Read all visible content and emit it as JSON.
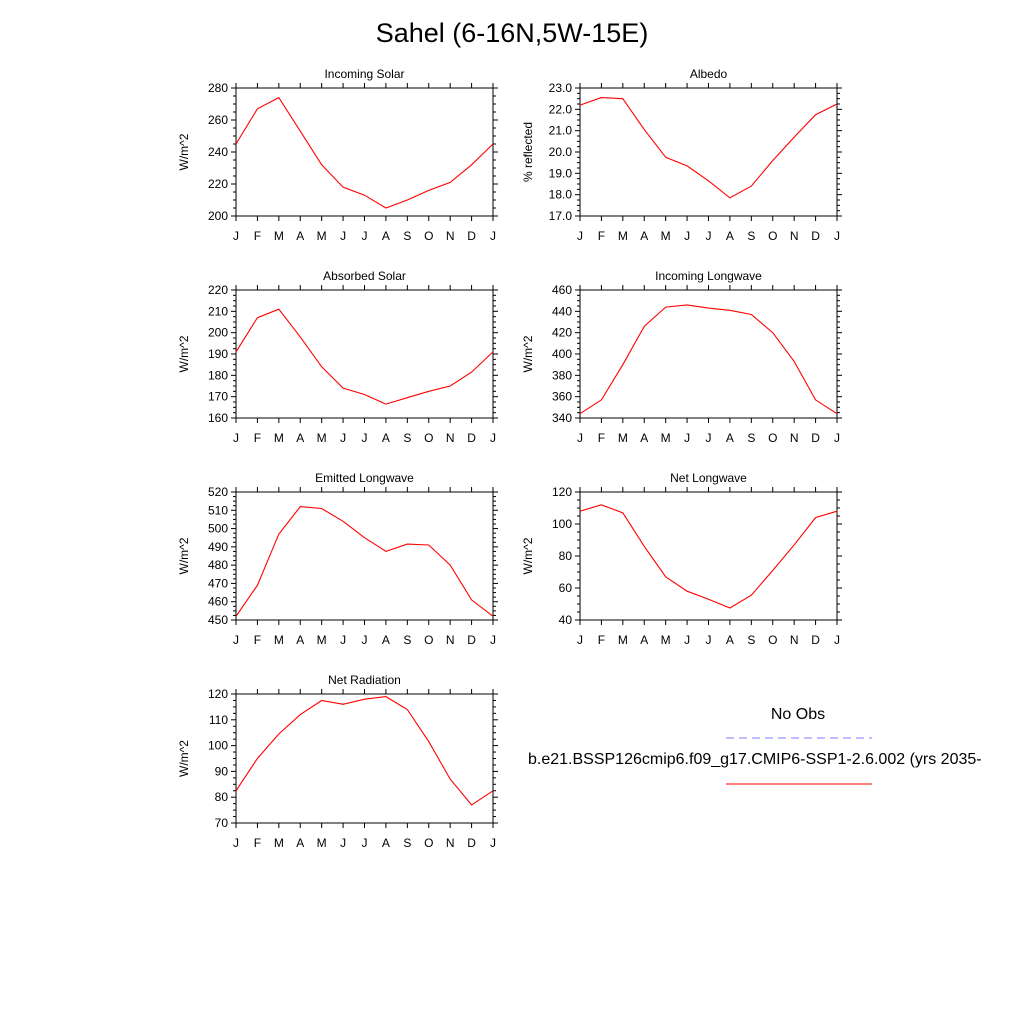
{
  "page": {
    "title": "Sahel (6-16N,5W-15E)"
  },
  "legend": {
    "obs_label": "No Obs",
    "obs_line_color": "#7b7bff",
    "obs_line_style": "dashed",
    "model_label": "b.e21.BSSP126cmip6.f09_g17.CMIP6-SSP1-2.6.002 (yrs 2035-",
    "model_line_color": "#ff0000"
  },
  "chart_data": [
    {
      "type": "line",
      "title": "Incoming Solar",
      "ylabel": "W/m^2",
      "ylim": [
        200,
        280
      ],
      "yticks": [
        "200",
        "220",
        "240",
        "260",
        "280"
      ],
      "categories": [
        "J",
        "F",
        "M",
        "A",
        "M",
        "J",
        "J",
        "A",
        "S",
        "O",
        "N",
        "D",
        "J"
      ],
      "series": [
        {
          "color": "#ff0000",
          "values": [
            245,
            267,
            274,
            253,
            232,
            218,
            213,
            205,
            210,
            216,
            221,
            232,
            245
          ]
        }
      ]
    },
    {
      "type": "line",
      "title": "Albedo",
      "ylabel": "% reflected",
      "ylim": [
        17.0,
        23.0
      ],
      "yticks": [
        "17.0",
        "18.0",
        "19.0",
        "20.0",
        "21.0",
        "22.0",
        "23.0"
      ],
      "categories": [
        "J",
        "F",
        "M",
        "A",
        "M",
        "J",
        "J",
        "A",
        "S",
        "O",
        "N",
        "D",
        "J"
      ],
      "series": [
        {
          "color": "#ff0000",
          "values": [
            22.2,
            22.55,
            22.5,
            21.05,
            19.75,
            19.35,
            18.65,
            17.85,
            18.4,
            19.6,
            20.7,
            21.75,
            22.25
          ]
        }
      ]
    },
    {
      "type": "line",
      "title": "Absorbed Solar",
      "ylabel": "W/m^2",
      "ylim": [
        160,
        220
      ],
      "yticks": [
        "160",
        "170",
        "180",
        "190",
        "200",
        "210",
        "220"
      ],
      "categories": [
        "J",
        "F",
        "M",
        "A",
        "M",
        "J",
        "J",
        "A",
        "S",
        "O",
        "N",
        "D",
        "J"
      ],
      "series": [
        {
          "color": "#ff0000",
          "values": [
            191,
            207,
            211,
            198,
            184,
            174,
            171,
            166.5,
            169.5,
            172.5,
            175,
            181.5,
            191
          ]
        }
      ]
    },
    {
      "type": "line",
      "title": "Incoming Longwave",
      "ylabel": "W/m^2",
      "ylim": [
        340,
        460
      ],
      "yticks": [
        "340",
        "360",
        "380",
        "400",
        "420",
        "440",
        "460"
      ],
      "categories": [
        "J",
        "F",
        "M",
        "A",
        "M",
        "J",
        "J",
        "A",
        "S",
        "O",
        "N",
        "D",
        "J"
      ],
      "series": [
        {
          "color": "#ff0000",
          "values": [
            344,
            357,
            390,
            426,
            444,
            446,
            443,
            441,
            437,
            420,
            393,
            357,
            344
          ]
        }
      ]
    },
    {
      "type": "line",
      "title": "Emitted Longwave",
      "ylabel": "W/m^2",
      "ylim": [
        450,
        520
      ],
      "yticks": [
        "450",
        "460",
        "470",
        "480",
        "490",
        "500",
        "510",
        "520"
      ],
      "categories": [
        "J",
        "F",
        "M",
        "A",
        "M",
        "J",
        "J",
        "A",
        "S",
        "O",
        "N",
        "D",
        "J"
      ],
      "series": [
        {
          "color": "#ff0000",
          "values": [
            452,
            469,
            497,
            512,
            511,
            504,
            495,
            487.5,
            491.5,
            491,
            480,
            461,
            452
          ]
        }
      ]
    },
    {
      "type": "line",
      "title": "Net Longwave",
      "ylabel": "W/m^2",
      "ylim": [
        40,
        120
      ],
      "yticks": [
        "40",
        "60",
        "80",
        "100",
        "120"
      ],
      "categories": [
        "J",
        "F",
        "M",
        "A",
        "M",
        "J",
        "J",
        "A",
        "S",
        "O",
        "N",
        "D",
        "J"
      ],
      "series": [
        {
          "color": "#ff0000",
          "values": [
            108,
            112,
            107,
            86,
            67,
            58,
            53,
            47.5,
            55.5,
            71,
            87,
            104,
            108
          ]
        }
      ]
    },
    {
      "type": "line",
      "title": "Net Radiation",
      "ylabel": "W/m^2",
      "ylim": [
        70,
        120
      ],
      "yticks": [
        "70",
        "80",
        "90",
        "100",
        "110",
        "120"
      ],
      "categories": [
        "J",
        "F",
        "M",
        "A",
        "M",
        "J",
        "J",
        "A",
        "S",
        "O",
        "N",
        "D",
        "J"
      ],
      "series": [
        {
          "color": "#ff0000",
          "values": [
            82.5,
            95,
            104.5,
            112,
            117.5,
            116,
            118,
            119,
            114,
            101.5,
            87,
            77,
            82.5
          ]
        }
      ]
    }
  ]
}
